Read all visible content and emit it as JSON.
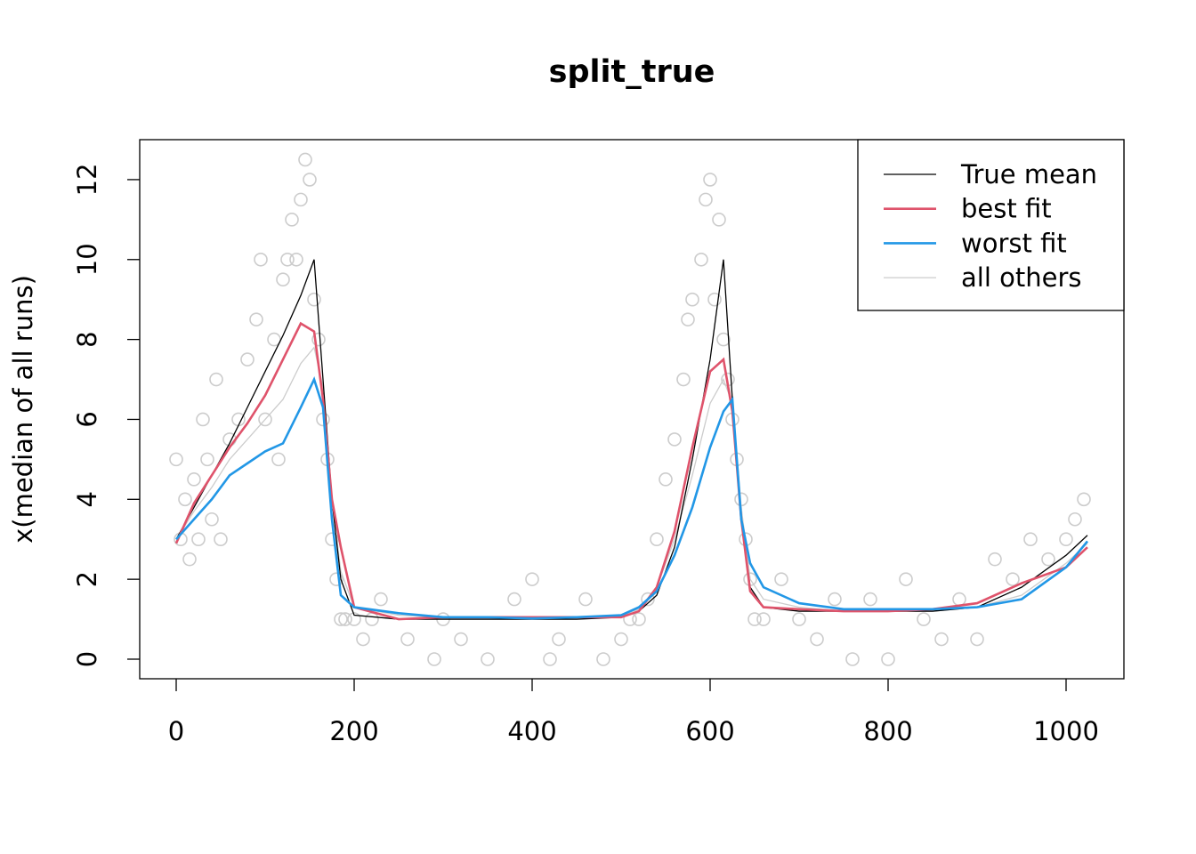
{
  "chart_data": {
    "type": "line",
    "title": "split_true",
    "y_label": "x(median of all runs)",
    "xlim": [
      -41,
      1065
    ],
    "ylim": [
      -0.49,
      13.0
    ],
    "xticks": [
      0,
      200,
      400,
      600,
      800,
      1000
    ],
    "yticks": [
      0,
      2,
      4,
      6,
      8,
      10,
      12
    ],
    "legend": "topright",
    "x": [
      0,
      20,
      40,
      60,
      80,
      100,
      120,
      140,
      155,
      165,
      175,
      185,
      200,
      250,
      300,
      350,
      400,
      450,
      500,
      520,
      540,
      560,
      580,
      600,
      615,
      625,
      635,
      645,
      660,
      700,
      750,
      800,
      850,
      900,
      950,
      1000,
      1024
    ],
    "series": [
      {
        "name": "True mean",
        "color": "#000000",
        "width": 1.3,
        "values": [
          3,
          3.8,
          4.6,
          5.4,
          6.3,
          7.2,
          8.1,
          9.1,
          10,
          7,
          4,
          2,
          1.1,
          1,
          1,
          1,
          1,
          1,
          1.05,
          1.2,
          1.6,
          2.8,
          5,
          7.5,
          10,
          6.5,
          3.5,
          1.8,
          1.3,
          1.2,
          1.2,
          1.2,
          1.2,
          1.3,
          1.8,
          2.6,
          3.1
        ]
      },
      {
        "name": "best fit",
        "color": "#df536b",
        "width": 2.6,
        "values": [
          2.9,
          3.9,
          4.6,
          5.3,
          5.9,
          6.6,
          7.5,
          8.4,
          8.2,
          6.5,
          4,
          2.8,
          1.3,
          1,
          1.05,
          1.05,
          1.05,
          1.05,
          1.05,
          1.2,
          1.8,
          3.2,
          5.3,
          7.2,
          7.5,
          6.2,
          3.5,
          1.7,
          1.3,
          1.25,
          1.2,
          1.2,
          1.25,
          1.4,
          1.9,
          2.3,
          2.8
        ]
      },
      {
        "name": "worst fit",
        "color": "#2297e6",
        "width": 2.6,
        "values": [
          3,
          3.5,
          4,
          4.6,
          4.9,
          5.2,
          5.4,
          6.3,
          7,
          6.3,
          3.5,
          1.6,
          1.3,
          1.15,
          1.05,
          1.05,
          1.02,
          1.05,
          1.1,
          1.3,
          1.7,
          2.6,
          3.8,
          5.3,
          6.2,
          6.5,
          3.5,
          2.4,
          1.8,
          1.4,
          1.25,
          1.25,
          1.25,
          1.3,
          1.5,
          2.3,
          2.95
        ]
      },
      {
        "name": "all others",
        "color": "#cccccc",
        "width": 1.3,
        "values": [
          3,
          3.7,
          4.3,
          5,
          5.5,
          6,
          6.5,
          7.4,
          7.8,
          6.8,
          4,
          2.2,
          1.3,
          1.1,
          1.05,
          1.05,
          1.05,
          1.05,
          1.1,
          1.25,
          1.8,
          3,
          4.6,
          6.4,
          7,
          6.4,
          3.8,
          2,
          1.5,
          1.3,
          1.2,
          1.2,
          1.2,
          1.3,
          1.6,
          2.4,
          2.9
        ]
      }
    ],
    "points": {
      "color": "#cccccc",
      "x": [
        0,
        5,
        10,
        15,
        20,
        25,
        30,
        35,
        40,
        45,
        50,
        60,
        70,
        80,
        90,
        95,
        100,
        110,
        115,
        120,
        125,
        130,
        135,
        140,
        145,
        150,
        155,
        160,
        165,
        170,
        175,
        180,
        185,
        190,
        200,
        210,
        220,
        230,
        260,
        290,
        300,
        320,
        350,
        380,
        400,
        420,
        430,
        460,
        480,
        500,
        510,
        520,
        530,
        540,
        550,
        560,
        570,
        575,
        580,
        590,
        595,
        600,
        605,
        610,
        615,
        620,
        625,
        630,
        635,
        640,
        645,
        650,
        660,
        680,
        700,
        720,
        740,
        760,
        780,
        800,
        820,
        840,
        860,
        880,
        900,
        920,
        940,
        960,
        980,
        1000,
        1010,
        1020
      ],
      "y": [
        5,
        3,
        4,
        2.5,
        4.5,
        3,
        6,
        5,
        3.5,
        7,
        3,
        5.5,
        6,
        7.5,
        8.5,
        10,
        6,
        8,
        5,
        9.5,
        10,
        11,
        10,
        11.5,
        12.5,
        12,
        9,
        8,
        6,
        5,
        3,
        2,
        1,
        1,
        1,
        0.5,
        1,
        1.5,
        0.5,
        0,
        1,
        0.5,
        0,
        1.5,
        2,
        0,
        0.5,
        1.5,
        0,
        0.5,
        1,
        1,
        1.5,
        3,
        4.5,
        5.5,
        7,
        8.5,
        9,
        10,
        11.5,
        12,
        9,
        11,
        8,
        7,
        6,
        5,
        4,
        3,
        2,
        1,
        1,
        2,
        1,
        0.5,
        1.5,
        0,
        1.5,
        0,
        2,
        1,
        0.5,
        1.5,
        0.5,
        2.5,
        2,
        3,
        2.5,
        3,
        3.5,
        4
      ]
    }
  }
}
